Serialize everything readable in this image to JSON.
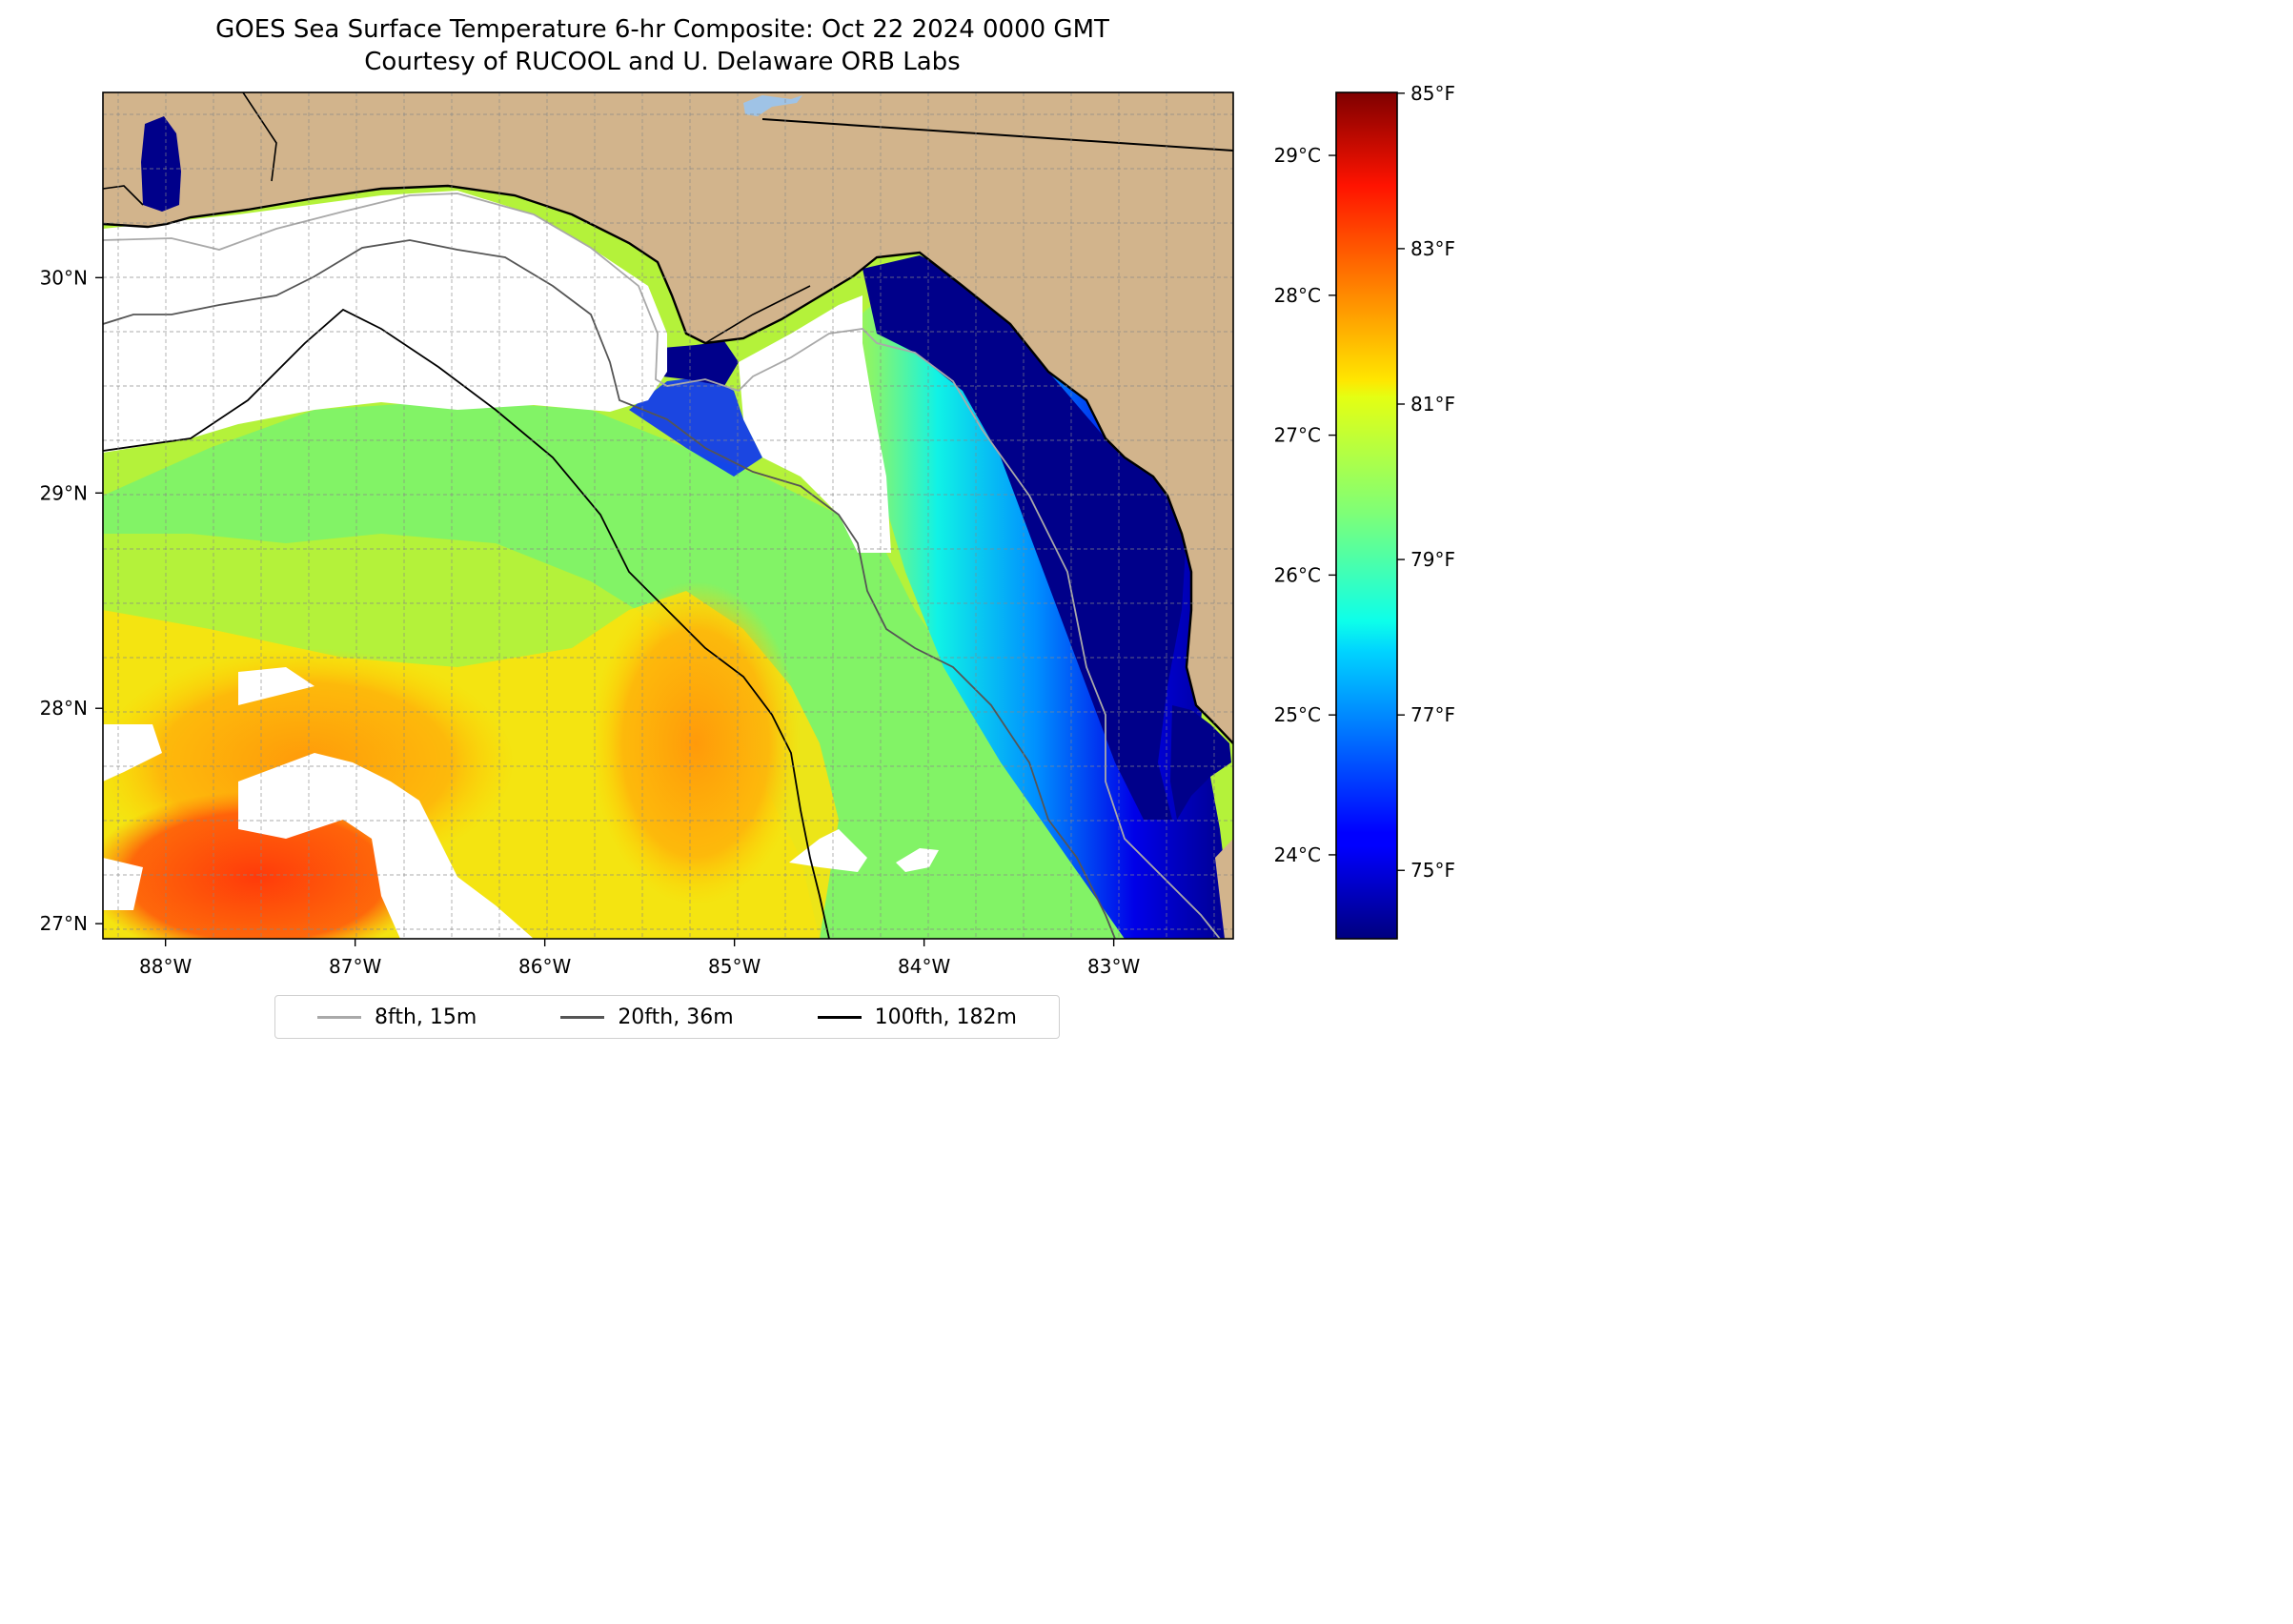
{
  "title": {
    "line1": "GOES Sea Surface Temperature 6-hr Composite: Oct 22 2024 0000 GMT",
    "line2": "Courtesy of RUCOOL and U. Delaware ORB Labs"
  },
  "map": {
    "lon_range": [
      -88.33,
      -82.37
    ],
    "lat_range": [
      26.93,
      30.86
    ],
    "lon_ticks": [
      {
        "value": -88,
        "label": "88°W"
      },
      {
        "value": -87,
        "label": "87°W"
      },
      {
        "value": -86,
        "label": "86°W"
      },
      {
        "value": -85,
        "label": "85°W"
      },
      {
        "value": -84,
        "label": "84°W"
      },
      {
        "value": -83,
        "label": "83°W"
      }
    ],
    "lat_ticks": [
      {
        "value": 27,
        "label": "27°N"
      },
      {
        "value": 28,
        "label": "28°N"
      },
      {
        "value": 29,
        "label": "29°N"
      },
      {
        "value": 30,
        "label": "30°N"
      }
    ],
    "grid": true,
    "land_color": "#d2b48c",
    "nodata_color": "#ffffff"
  },
  "colorbar": {
    "colormap": "jet",
    "range_c": [
      23.4,
      29.45
    ],
    "celsius_ticks": [
      {
        "value": 24,
        "label": "24°C"
      },
      {
        "value": 25,
        "label": "25°C"
      },
      {
        "value": 26,
        "label": "26°C"
      },
      {
        "value": 27,
        "label": "27°C"
      },
      {
        "value": 28,
        "label": "28°C"
      },
      {
        "value": 29,
        "label": "29°C"
      }
    ],
    "fahrenheit_ticks": [
      {
        "value": 75,
        "label": "75°F"
      },
      {
        "value": 77,
        "label": "77°F"
      },
      {
        "value": 79,
        "label": "79°F"
      },
      {
        "value": 81,
        "label": "81°F"
      },
      {
        "value": 83,
        "label": "83°F"
      },
      {
        "value": 85,
        "label": "85°F"
      }
    ]
  },
  "legend": {
    "location": "bottom-center, below the map",
    "items": [
      {
        "label": "8fth, 15m",
        "color": "#a9a9a9"
      },
      {
        "label": "20fth, 36m",
        "color": "#555555"
      },
      {
        "label": "100fth, 182m",
        "color": "#000000"
      }
    ]
  }
}
